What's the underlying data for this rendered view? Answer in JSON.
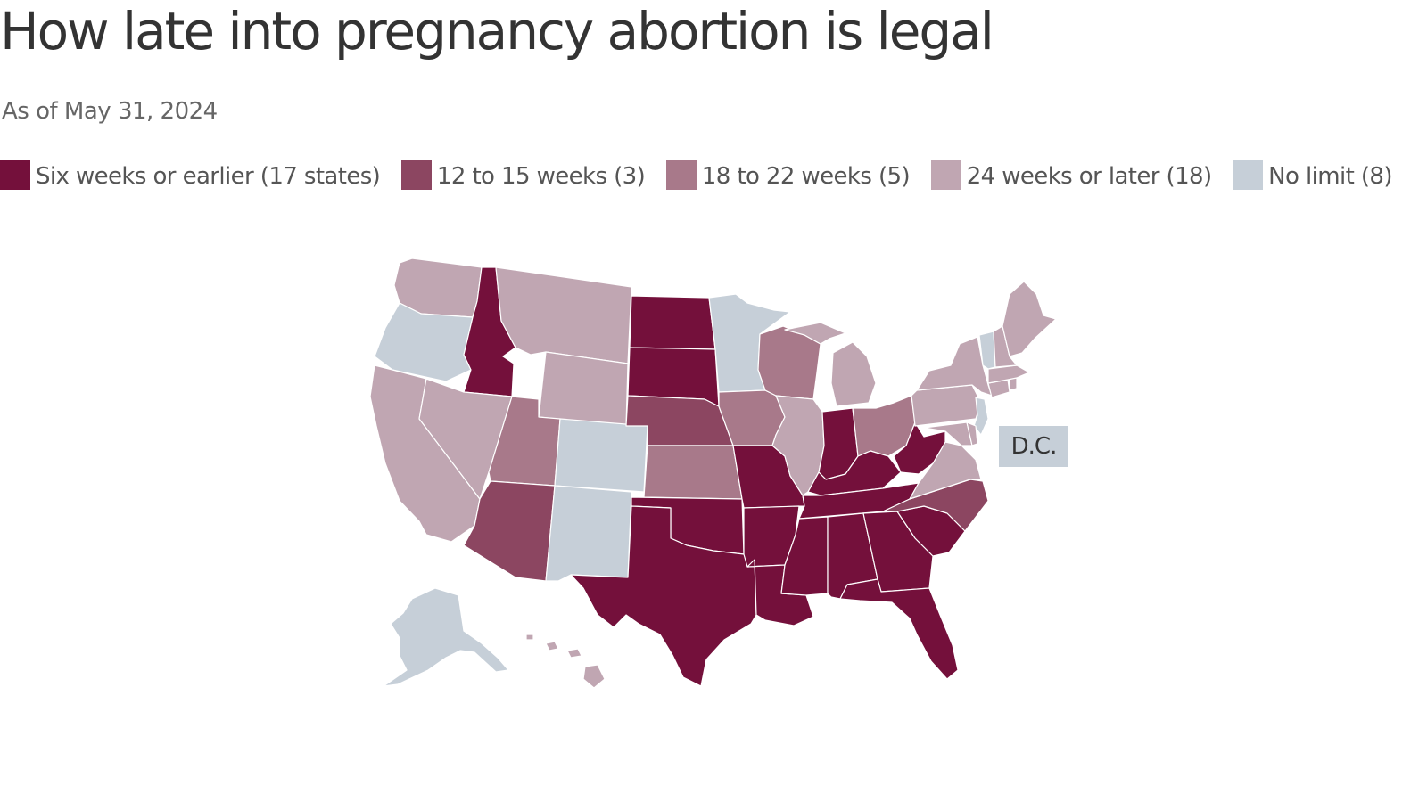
{
  "title": "How late into pregnancy abortion is legal",
  "subtitle": "As of May 31, 2024",
  "colors": {
    "six_weeks": "#74103b",
    "twelve_fifteen": "#8c4661",
    "eighteen_twentytwo": "#a8798a",
    "twentyfour_later": "#c0a6b2",
    "no_limit": "#c6cfd8"
  },
  "legend": [
    {
      "label": "Six weeks or earlier (17 states)",
      "color_key": "six_weeks"
    },
    {
      "label": "12 to 15 weeks (3)",
      "color_key": "twelve_fifteen"
    },
    {
      "label": "18 to 22 weeks (5)",
      "color_key": "eighteen_twentytwo"
    },
    {
      "label": "24 weeks or later (18)",
      "color_key": "twentyfour_later"
    },
    {
      "label": "No limit (8)",
      "color_key": "no_limit"
    }
  ],
  "dc_label": "D.C.",
  "states": {
    "WA": "twentyfour_later",
    "OR": "no_limit",
    "CA": "twentyfour_later",
    "ID": "six_weeks",
    "NV": "twentyfour_later",
    "MT": "twentyfour_later",
    "WY": "twentyfour_later",
    "UT": "eighteen_twentytwo",
    "AZ": "twelve_fifteen",
    "CO": "no_limit",
    "NM": "no_limit",
    "ND": "six_weeks",
    "SD": "six_weeks",
    "NE": "twelve_fifteen",
    "KS": "eighteen_twentytwo",
    "OK": "six_weeks",
    "TX": "six_weeks",
    "MN": "no_limit",
    "IA": "eighteen_twentytwo",
    "MO": "six_weeks",
    "AR": "six_weeks",
    "LA": "six_weeks",
    "WI": "eighteen_twentytwo",
    "IL": "twentyfour_later",
    "MI": "twentyfour_later",
    "IN": "six_weeks",
    "OH": "eighteen_twentytwo",
    "KY": "six_weeks",
    "TN": "six_weeks",
    "MS": "six_weeks",
    "AL": "six_weeks",
    "GA": "six_weeks",
    "FL": "six_weeks",
    "SC": "six_weeks",
    "NC": "twelve_fifteen",
    "VA": "twentyfour_later",
    "WV": "six_weeks",
    "PA": "twentyfour_later",
    "NY": "twentyfour_later",
    "NJ": "no_limit",
    "DE": "twentyfour_later",
    "MD": "twentyfour_later",
    "CT": "twentyfour_later",
    "RI": "twentyfour_later",
    "MA": "twentyfour_later",
    "VT": "no_limit",
    "NH": "twentyfour_later",
    "ME": "twentyfour_later",
    "AK": "no_limit",
    "HI": "twentyfour_later",
    "DC": "no_limit"
  }
}
